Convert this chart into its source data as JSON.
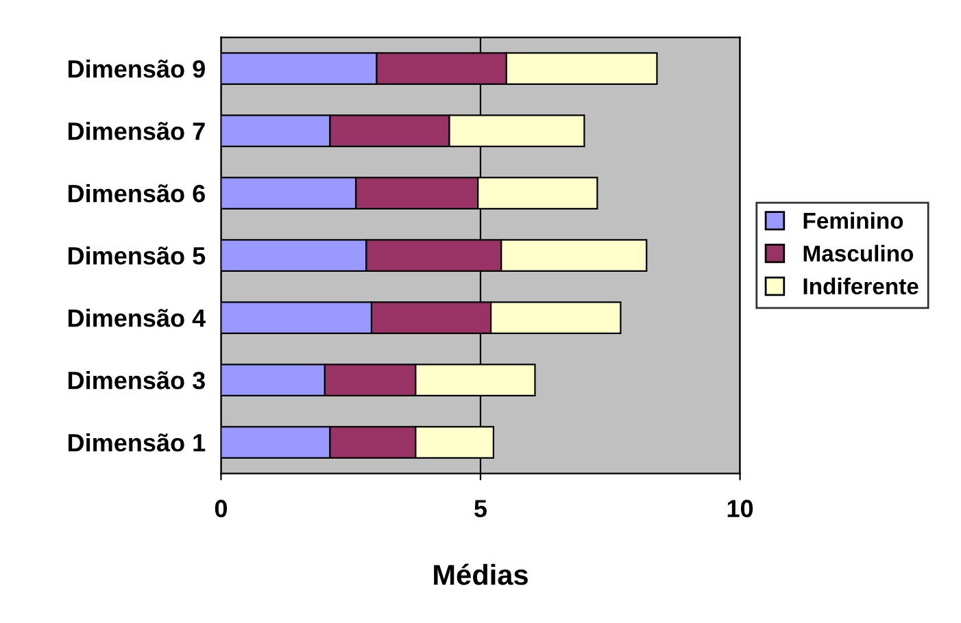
{
  "chart_data": {
    "type": "bar",
    "orientation": "horizontal",
    "stacked": true,
    "xlabel": "Médias",
    "categories": [
      "Dimensão 9",
      "Dimensão 7",
      "Dimensão 6",
      "Dimensão 5",
      "Dimensão 4",
      "Dimensão 3",
      "Dimensão 1"
    ],
    "series": [
      {
        "name": "Feminino",
        "color": "#9999ff",
        "values": [
          3.0,
          2.1,
          2.6,
          2.8,
          2.9,
          2.0,
          2.1
        ]
      },
      {
        "name": "Masculino",
        "color": "#993366",
        "values": [
          2.5,
          2.3,
          2.35,
          2.6,
          2.3,
          1.75,
          1.65
        ]
      },
      {
        "name": "Indiferente",
        "color": "#ffffcc",
        "values": [
          2.9,
          2.6,
          2.3,
          2.8,
          2.5,
          2.3,
          1.5
        ]
      }
    ],
    "xlim": [
      0,
      10
    ],
    "xticks": [
      0,
      5,
      10
    ],
    "grid": "x",
    "legend": "right"
  }
}
